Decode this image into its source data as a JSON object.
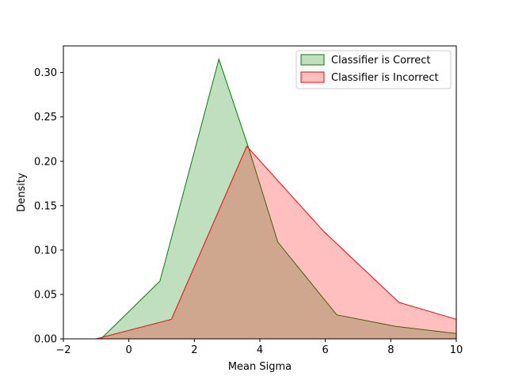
{
  "chart_data": {
    "type": "area",
    "title": "",
    "xlabel": "Mean Sigma",
    "ylabel": "Density",
    "xlim": [
      -2,
      10
    ],
    "ylim": [
      0,
      0.33
    ],
    "xticks": [
      "−2",
      "0",
      "2",
      "4",
      "6",
      "8",
      "10"
    ],
    "xtick_values": [
      -2,
      0,
      2,
      4,
      6,
      8,
      10
    ],
    "yticks": [
      "0.00",
      "0.05",
      "0.10",
      "0.15",
      "0.20",
      "0.25",
      "0.30"
    ],
    "ytick_values": [
      0,
      0.05,
      0.1,
      0.15,
      0.2,
      0.25,
      0.3
    ],
    "grid": false,
    "legend_position": "upper right",
    "series": [
      {
        "name": "Classifier is Correct",
        "color": "#008000",
        "fill": "#008000",
        "fill_alpha": 0.25,
        "points": [
          [
            -0.85,
            0.0
          ],
          [
            0.95,
            0.065
          ],
          [
            2.75,
            0.315
          ],
          [
            3.65,
            0.216
          ],
          [
            4.55,
            0.109
          ],
          [
            6.35,
            0.027
          ],
          [
            8.15,
            0.014
          ],
          [
            10.0,
            0.006
          ]
        ]
      },
      {
        "name": "Classifier is Incorrect",
        "color": "#ff0000",
        "fill": "#ff0000",
        "fill_alpha": 0.25,
        "points": [
          [
            -1.0,
            0.0
          ],
          [
            1.3,
            0.022
          ],
          [
            3.6,
            0.217
          ],
          [
            5.95,
            0.121
          ],
          [
            8.25,
            0.041
          ],
          [
            10.0,
            0.022
          ]
        ]
      }
    ]
  }
}
